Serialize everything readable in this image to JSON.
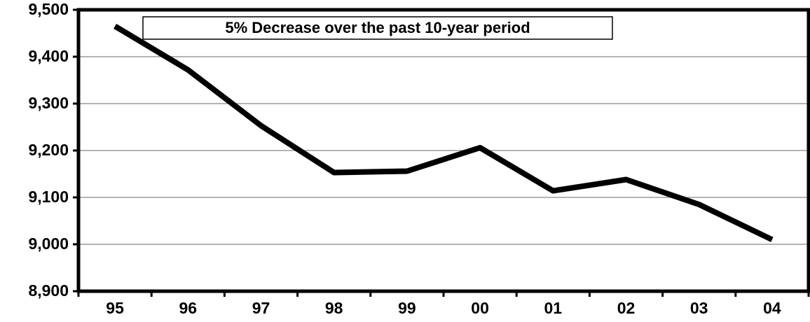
{
  "chart_data": {
    "type": "line",
    "title": "",
    "xlabel": "",
    "ylabel": "",
    "categories": [
      "95",
      "96",
      "97",
      "98",
      "99",
      "00",
      "01",
      "02",
      "03",
      "04"
    ],
    "series": [
      {
        "values": [
          9465,
          9372,
          9253,
          9153,
          9156,
          9206,
          9114,
          9138,
          9085,
          9010
        ]
      }
    ],
    "ylim": [
      8900,
      9500
    ],
    "yticks": [
      "8,900",
      "9,000",
      "9,100",
      "9,200",
      "9,300",
      "9,400",
      "9,500"
    ],
    "grid": true,
    "legend": "none",
    "annotation": "5% Decrease over the past 10-year period",
    "line_color": "#000000",
    "grid_color": "#888888"
  }
}
